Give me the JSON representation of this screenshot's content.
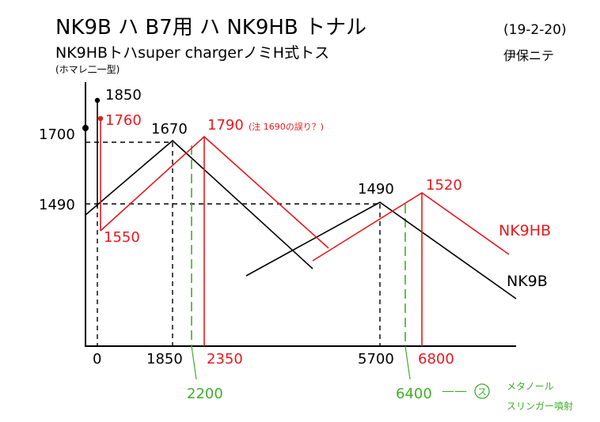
{
  "header": {
    "title": "NK9B ハ B7用 ハ NK9HB トナル",
    "subtitle": "NK9HBトハsuper chargerノミH式トス",
    "note": "(ホマレ二一型)",
    "date": "(19-2-20)",
    "author": "伊保ニテ"
  },
  "colors": {
    "nk9b": "#000000",
    "nk9hb": "#e8191e",
    "green": "#3fae2a"
  },
  "labels": {
    "v1850": "1850",
    "v1760": "1760",
    "v1670": "1670",
    "v1790": "1790",
    "v1790_note": "(注 1690の誤り？)",
    "v1490_top": "1490",
    "v1520": "1520",
    "v1550": "1550",
    "y1700": "1700",
    "y1490": "1490",
    "x0": "0",
    "x1850": "1850",
    "x2350": "2350",
    "x2200": "2200",
    "x5700": "5700",
    "x6800": "6800",
    "x6400": "6400",
    "dash_sep": "——",
    "circle_mark": "ス",
    "injection_1": "メタノール",
    "injection_2": "スリンガー噴射",
    "series_nk9hb": "NK9HB",
    "series_nk9b": "NK9B"
  },
  "chart_data": {
    "type": "line",
    "title": "NK9B ハ B7用 ハ NK9HB トナル",
    "xlabel": "",
    "ylabel": "",
    "x_ticks": [
      0,
      1850,
      2200,
      2350,
      5700,
      6400,
      6800
    ],
    "y_ticks": [
      1490,
      1700
    ],
    "series": [
      {
        "name": "NK9B",
        "peaks": [
          {
            "x": 0,
            "y": 1850
          },
          {
            "x": 1850,
            "y": 1670
          },
          {
            "x": 5700,
            "y": 1490
          }
        ]
      },
      {
        "name": "NK9HB",
        "peaks": [
          {
            "x": 0,
            "y": 1760
          },
          {
            "x": 0,
            "y": 1550
          },
          {
            "x": 2350,
            "y": 1790
          },
          {
            "x": 6800,
            "y": 1520
          }
        ]
      }
    ],
    "annotations": [
      "(注 1690の誤り？)",
      "メタノール",
      "スリンガー噴射"
    ]
  }
}
